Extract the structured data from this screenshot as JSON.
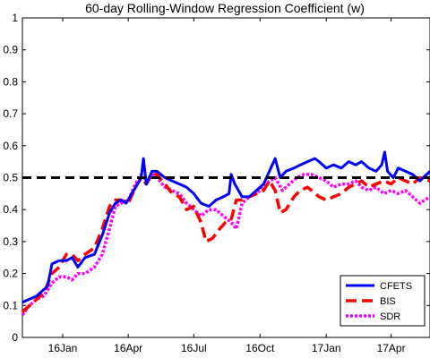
{
  "chart_data": {
    "type": "line",
    "title": "60-day Rolling-Window Regression Coefficient (w)",
    "xlabel": "",
    "ylabel": "",
    "ylim": [
      0,
      1
    ],
    "yticks": [
      "0",
      "0.1",
      "0.2",
      "0.3",
      "0.4",
      "0.5",
      "0.6",
      "0.7",
      "0.8",
      "0.9",
      "1"
    ],
    "xlim": [
      "2015-11-20",
      "2017-06-08"
    ],
    "xticks": [
      {
        "label": "16Jan",
        "date": "2016-01-15"
      },
      {
        "label": "16Apr",
        "date": "2016-04-15"
      },
      {
        "label": "16Jul",
        "date": "2016-07-15"
      },
      {
        "label": "16Oct",
        "date": "2016-10-15"
      },
      {
        "label": "17Jan",
        "date": "2017-01-15"
      },
      {
        "label": "17Apr",
        "date": "2017-04-15"
      }
    ],
    "reference_line": {
      "value": 0.5,
      "style": "dashed",
      "color": "#000000"
    },
    "grid": false,
    "legend_position": "bottom-right",
    "series": [
      {
        "name": "CFETS",
        "color": "#0000ff",
        "style": "solid",
        "points": [
          [
            "2015-11-20",
            0.11
          ],
          [
            "2015-11-30",
            0.12
          ],
          [
            "2015-12-10",
            0.13
          ],
          [
            "2015-12-20",
            0.15
          ],
          [
            "2015-12-25",
            0.16
          ],
          [
            "2015-12-31",
            0.23
          ],
          [
            "2016-01-10",
            0.24
          ],
          [
            "2016-01-20",
            0.24
          ],
          [
            "2016-01-28",
            0.25
          ],
          [
            "2016-02-05",
            0.22
          ],
          [
            "2016-02-15",
            0.25
          ],
          [
            "2016-02-28",
            0.26
          ],
          [
            "2016-03-10",
            0.32
          ],
          [
            "2016-03-20",
            0.39
          ],
          [
            "2016-03-28",
            0.42
          ],
          [
            "2016-04-05",
            0.43
          ],
          [
            "2016-04-12",
            0.42
          ],
          [
            "2016-04-20",
            0.45
          ],
          [
            "2016-04-28",
            0.48
          ],
          [
            "2016-05-03",
            0.5
          ],
          [
            "2016-05-06",
            0.56
          ],
          [
            "2016-05-10",
            0.48
          ],
          [
            "2016-05-18",
            0.52
          ],
          [
            "2016-05-25",
            0.52
          ],
          [
            "2016-06-05",
            0.5
          ],
          [
            "2016-06-15",
            0.49
          ],
          [
            "2016-06-25",
            0.48
          ],
          [
            "2016-07-05",
            0.47
          ],
          [
            "2016-07-15",
            0.45
          ],
          [
            "2016-07-25",
            0.42
          ],
          [
            "2016-08-05",
            0.41
          ],
          [
            "2016-08-15",
            0.43
          ],
          [
            "2016-08-25",
            0.44
          ],
          [
            "2016-09-02",
            0.45
          ],
          [
            "2016-09-05",
            0.51
          ],
          [
            "2016-09-10",
            0.48
          ],
          [
            "2016-09-20",
            0.44
          ],
          [
            "2016-09-30",
            0.44
          ],
          [
            "2016-10-10",
            0.46
          ],
          [
            "2016-10-20",
            0.48
          ],
          [
            "2016-10-28",
            0.52
          ],
          [
            "2016-11-05",
            0.56
          ],
          [
            "2016-11-12",
            0.5
          ],
          [
            "2016-11-20",
            0.52
          ],
          [
            "2016-12-01",
            0.53
          ],
          [
            "2016-12-10",
            0.54
          ],
          [
            "2016-12-20",
            0.55
          ],
          [
            "2016-12-30",
            0.56
          ],
          [
            "2017-01-05",
            0.55
          ],
          [
            "2017-01-15",
            0.53
          ],
          [
            "2017-01-25",
            0.54
          ],
          [
            "2017-02-05",
            0.53
          ],
          [
            "2017-02-15",
            0.55
          ],
          [
            "2017-02-25",
            0.54
          ],
          [
            "2017-03-05",
            0.55
          ],
          [
            "2017-03-15",
            0.53
          ],
          [
            "2017-03-25",
            0.52
          ],
          [
            "2017-04-02",
            0.54
          ],
          [
            "2017-04-06",
            0.58
          ],
          [
            "2017-04-10",
            0.52
          ],
          [
            "2017-04-18",
            0.5
          ],
          [
            "2017-04-25",
            0.53
          ],
          [
            "2017-05-05",
            0.52
          ],
          [
            "2017-05-15",
            0.51
          ],
          [
            "2017-05-25",
            0.49
          ],
          [
            "2017-06-08",
            0.52
          ]
        ]
      },
      {
        "name": "BIS",
        "color": "#ff0000",
        "style": "dashed",
        "points": [
          [
            "2015-11-20",
            0.08
          ],
          [
            "2015-11-30",
            0.1
          ],
          [
            "2015-12-10",
            0.12
          ],
          [
            "2015-12-20",
            0.14
          ],
          [
            "2015-12-31",
            0.2
          ],
          [
            "2016-01-10",
            0.22
          ],
          [
            "2016-01-20",
            0.26
          ],
          [
            "2016-01-28",
            0.26
          ],
          [
            "2016-02-05",
            0.24
          ],
          [
            "2016-02-15",
            0.26
          ],
          [
            "2016-02-28",
            0.28
          ],
          [
            "2016-03-10",
            0.34
          ],
          [
            "2016-03-20",
            0.41
          ],
          [
            "2016-03-28",
            0.43
          ],
          [
            "2016-04-05",
            0.43
          ],
          [
            "2016-04-15",
            0.42
          ],
          [
            "2016-04-25",
            0.47
          ],
          [
            "2016-05-03",
            0.5
          ],
          [
            "2016-05-10",
            0.48
          ],
          [
            "2016-05-18",
            0.51
          ],
          [
            "2016-05-25",
            0.51
          ],
          [
            "2016-06-05",
            0.48
          ],
          [
            "2016-06-15",
            0.45
          ],
          [
            "2016-06-25",
            0.44
          ],
          [
            "2016-07-05",
            0.4
          ],
          [
            "2016-07-15",
            0.41
          ],
          [
            "2016-07-25",
            0.36
          ],
          [
            "2016-08-01",
            0.3
          ],
          [
            "2016-08-10",
            0.31
          ],
          [
            "2016-08-20",
            0.34
          ],
          [
            "2016-08-28",
            0.36
          ],
          [
            "2016-09-05",
            0.37
          ],
          [
            "2016-09-12",
            0.43
          ],
          [
            "2016-09-20",
            0.43
          ],
          [
            "2016-09-30",
            0.44
          ],
          [
            "2016-10-10",
            0.45
          ],
          [
            "2016-10-20",
            0.46
          ],
          [
            "2016-10-28",
            0.49
          ],
          [
            "2016-11-05",
            0.46
          ],
          [
            "2016-11-12",
            0.39
          ],
          [
            "2016-11-20",
            0.4
          ],
          [
            "2016-12-01",
            0.44
          ],
          [
            "2016-12-10",
            0.46
          ],
          [
            "2016-12-20",
            0.47
          ],
          [
            "2017-01-05",
            0.44
          ],
          [
            "2017-01-15",
            0.43
          ],
          [
            "2017-01-25",
            0.44
          ],
          [
            "2017-02-05",
            0.45
          ],
          [
            "2017-02-15",
            0.47
          ],
          [
            "2017-02-25",
            0.48
          ],
          [
            "2017-03-05",
            0.49
          ],
          [
            "2017-03-15",
            0.47
          ],
          [
            "2017-03-25",
            0.48
          ],
          [
            "2017-04-05",
            0.49
          ],
          [
            "2017-04-15",
            0.48
          ],
          [
            "2017-04-25",
            0.5
          ],
          [
            "2017-05-05",
            0.49
          ],
          [
            "2017-05-15",
            0.48
          ],
          [
            "2017-05-25",
            0.5
          ],
          [
            "2017-06-08",
            0.49
          ]
        ]
      },
      {
        "name": "SDR",
        "color": "#ff00ff",
        "style": "dotted",
        "points": [
          [
            "2015-11-20",
            0.07
          ],
          [
            "2015-11-30",
            0.1
          ],
          [
            "2015-12-10",
            0.12
          ],
          [
            "2015-12-20",
            0.13
          ],
          [
            "2015-12-31",
            0.17
          ],
          [
            "2016-01-10",
            0.19
          ],
          [
            "2016-01-20",
            0.19
          ],
          [
            "2016-01-28",
            0.18
          ],
          [
            "2016-02-05",
            0.2
          ],
          [
            "2016-02-15",
            0.2
          ],
          [
            "2016-02-28",
            0.22
          ],
          [
            "2016-03-10",
            0.26
          ],
          [
            "2016-03-20",
            0.34
          ],
          [
            "2016-03-28",
            0.41
          ],
          [
            "2016-04-05",
            0.42
          ],
          [
            "2016-04-15",
            0.43
          ],
          [
            "2016-04-25",
            0.48
          ],
          [
            "2016-05-03",
            0.51
          ],
          [
            "2016-05-10",
            0.49
          ],
          [
            "2016-05-18",
            0.51
          ],
          [
            "2016-05-25",
            0.5
          ],
          [
            "2016-06-05",
            0.47
          ],
          [
            "2016-06-15",
            0.46
          ],
          [
            "2016-06-25",
            0.45
          ],
          [
            "2016-07-05",
            0.42
          ],
          [
            "2016-07-15",
            0.4
          ],
          [
            "2016-07-25",
            0.38
          ],
          [
            "2016-08-05",
            0.4
          ],
          [
            "2016-08-15",
            0.4
          ],
          [
            "2016-08-25",
            0.38
          ],
          [
            "2016-09-05",
            0.36
          ],
          [
            "2016-09-12",
            0.34
          ],
          [
            "2016-09-20",
            0.42
          ],
          [
            "2016-09-30",
            0.44
          ],
          [
            "2016-10-10",
            0.45
          ],
          [
            "2016-10-20",
            0.47
          ],
          [
            "2016-10-28",
            0.49
          ],
          [
            "2016-11-05",
            0.5
          ],
          [
            "2016-11-15",
            0.46
          ],
          [
            "2016-11-25",
            0.48
          ],
          [
            "2016-12-05",
            0.5
          ],
          [
            "2016-12-15",
            0.51
          ],
          [
            "2016-12-25",
            0.51
          ],
          [
            "2017-01-05",
            0.5
          ],
          [
            "2017-01-15",
            0.49
          ],
          [
            "2017-01-25",
            0.47
          ],
          [
            "2017-02-05",
            0.48
          ],
          [
            "2017-02-15",
            0.48
          ],
          [
            "2017-02-25",
            0.49
          ],
          [
            "2017-03-05",
            0.47
          ],
          [
            "2017-03-15",
            0.46
          ],
          [
            "2017-03-25",
            0.47
          ],
          [
            "2017-04-05",
            0.45
          ],
          [
            "2017-04-15",
            0.46
          ],
          [
            "2017-04-25",
            0.45
          ],
          [
            "2017-05-05",
            0.46
          ],
          [
            "2017-05-15",
            0.44
          ],
          [
            "2017-05-25",
            0.42
          ],
          [
            "2017-06-08",
            0.44
          ]
        ]
      }
    ]
  }
}
